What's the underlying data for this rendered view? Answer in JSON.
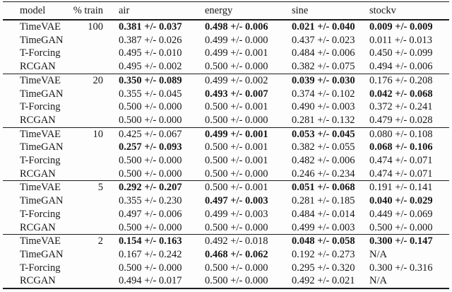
{
  "table": {
    "columns": [
      "model",
      "% train",
      "air",
      "energy",
      "sine",
      "stockv"
    ],
    "groups": [
      {
        "train": "100",
        "rows": [
          {
            "model": "TimeVAE",
            "values": [
              "0.381 +/- 0.037",
              "0.498 +/- 0.006",
              "0.021 +/- 0.040",
              "0.009 +/- 0.009"
            ],
            "bold": [
              true,
              true,
              true,
              true
            ]
          },
          {
            "model": "TimeGAN",
            "values": [
              "0.387 +/- 0.026",
              "0.499 +/- 0.000",
              "0.437 +/- 0.023",
              "0.011 +/- 0.013"
            ],
            "bold": [
              false,
              false,
              false,
              false
            ]
          },
          {
            "model": "T-Forcing",
            "values": [
              "0.495 +/- 0.010",
              "0.499 +/- 0.001",
              "0.484 +/- 0.006",
              "0.450 +/- 0.099"
            ],
            "bold": [
              false,
              false,
              false,
              false
            ]
          },
          {
            "model": "RCGAN",
            "values": [
              "0.495 +/- 0.002",
              "0.500 +/- 0.000",
              "0.382 +/- 0.075",
              "0.494 +/- 0.006"
            ],
            "bold": [
              false,
              false,
              false,
              false
            ]
          }
        ]
      },
      {
        "train": "20",
        "rows": [
          {
            "model": "TimeVAE",
            "values": [
              "0.350 +/- 0.089",
              "0.499 +/- 0.002",
              "0.039 +/- 0.030",
              "0.176 +/- 0.208"
            ],
            "bold": [
              true,
              false,
              true,
              false
            ]
          },
          {
            "model": "TimeGAN",
            "values": [
              "0.355 +/- 0.045",
              "0.493 +/- 0.007",
              "0.374 +/- 0.102",
              "0.042 +/- 0.068"
            ],
            "bold": [
              false,
              true,
              false,
              true
            ]
          },
          {
            "model": "T-Forcing",
            "values": [
              "0.500 +/- 0.000",
              "0.500 +/- 0.001",
              "0.490 +/- 0.003",
              "0.372 +/- 0.241"
            ],
            "bold": [
              false,
              false,
              false,
              false
            ]
          },
          {
            "model": "RCGAN",
            "values": [
              "0.500 +/- 0.000",
              "0.500 +/- 0.000",
              "0.281 +/- 0.132",
              "0.479 +/- 0.028"
            ],
            "bold": [
              false,
              false,
              false,
              false
            ]
          }
        ]
      },
      {
        "train": "10",
        "rows": [
          {
            "model": "TimeVAE",
            "values": [
              "0.425 +/- 0.067",
              "0.499 +/- 0.001",
              "0.053 +/- 0.045",
              "0.080 +/- 0.108"
            ],
            "bold": [
              false,
              true,
              true,
              false
            ]
          },
          {
            "model": "TimeGAN",
            "values": [
              "0.257 +/- 0.093",
              "0.500 +/- 0.001",
              "0.382 +/- 0.055",
              "0.068 +/- 0.106"
            ],
            "bold": [
              true,
              false,
              false,
              true
            ]
          },
          {
            "model": "T-Forcing",
            "values": [
              "0.500 +/- 0.000",
              "0.500 +/- 0.001",
              "0.482 +/- 0.006",
              "0.474 +/- 0.071"
            ],
            "bold": [
              false,
              false,
              false,
              false
            ]
          },
          {
            "model": "RCGAN",
            "values": [
              "0.500 +/- 0.000",
              "0.500 +/- 0.000",
              "0.246 +/- 0.234",
              "0.474 +/- 0.071"
            ],
            "bold": [
              false,
              false,
              false,
              false
            ]
          }
        ]
      },
      {
        "train": "5",
        "rows": [
          {
            "model": "TimeVAE",
            "values": [
              "0.292 +/- 0.207",
              "0.500 +/- 0.001",
              "0.051 +/- 0.068",
              "0.191 +/- 0.141"
            ],
            "bold": [
              true,
              false,
              true,
              false
            ]
          },
          {
            "model": "TimeGAN",
            "values": [
              "0.355 +/- 0.230",
              "0.497 +/- 0.003",
              "0.281 +/- 0.185",
              "0.040 +/- 0.029"
            ],
            "bold": [
              false,
              true,
              false,
              true
            ]
          },
          {
            "model": "T-Forcing",
            "values": [
              "0.497 +/- 0.006",
              "0.499 +/- 0.003",
              "0.484 +/- 0.014",
              "0.449 +/- 0.069"
            ],
            "bold": [
              false,
              false,
              false,
              false
            ]
          },
          {
            "model": "RCGAN",
            "values": [
              "0.500 +/- 0.000",
              "0.500 +/- 0.000",
              "0.499 +/- 0.003",
              "0.500 +/- 0.000"
            ],
            "bold": [
              false,
              false,
              false,
              false
            ]
          }
        ]
      },
      {
        "train": "2",
        "rows": [
          {
            "model": "TimeVAE",
            "values": [
              "0.154 +/- 0.163",
              "0.492 +/- 0.018",
              "0.048 +/- 0.058",
              "0.300 +/- 0.147"
            ],
            "bold": [
              true,
              false,
              true,
              true
            ]
          },
          {
            "model": "TimeGAN",
            "values": [
              "0.167 +/- 0.242",
              "0.468 +/- 0.062",
              "0.192 +/- 0.273",
              "N/A"
            ],
            "bold": [
              false,
              true,
              false,
              false
            ]
          },
          {
            "model": "T-Forcing",
            "values": [
              "0.500 +/- 0.000",
              "0.500 +/- 0.000",
              "0.295 +/- 0.320",
              "0.300 +/- 0.316"
            ],
            "bold": [
              false,
              false,
              false,
              false
            ]
          },
          {
            "model": "RCGAN",
            "values": [
              "0.494 +/- 0.017",
              "0.500 +/- 0.000",
              "0.492 +/- 0.021",
              "N/A"
            ],
            "bold": [
              false,
              false,
              false,
              false
            ]
          }
        ]
      }
    ]
  }
}
